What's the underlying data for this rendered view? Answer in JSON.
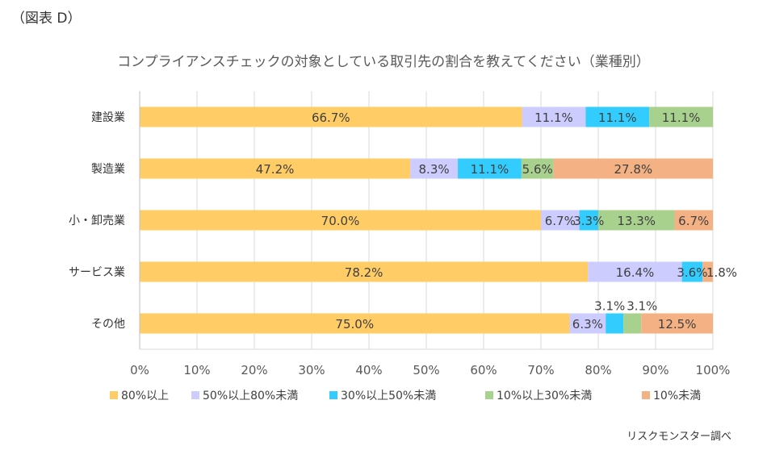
{
  "figure_label": "（図表 D）",
  "source_note": "リスクモンスター調べ",
  "chart_data": {
    "type": "bar",
    "orientation": "horizontal",
    "stacked": true,
    "title": "コンプライアンスチェックの対象としている取引先の割合を教えてください（業種別）",
    "xlabel": "",
    "ylabel": "",
    "xlim": [
      0,
      100
    ],
    "x_ticks": [
      "0%",
      "10%",
      "20%",
      "30%",
      "40%",
      "50%",
      "60%",
      "70%",
      "80%",
      "90%",
      "100%"
    ],
    "grid": "vertical",
    "legend_position": "bottom",
    "categories": [
      "建設業",
      "製造業",
      "小・卸売業",
      "サービス業",
      "その他"
    ],
    "series": [
      {
        "name": "80%以上",
        "color": "#FFCC66",
        "values": [
          66.7,
          47.2,
          70.0,
          78.2,
          75.0
        ],
        "labels": [
          "66.7%",
          "47.2%",
          "70.0%",
          "78.2%",
          "75.0%"
        ]
      },
      {
        "name": "50%以上80%未満",
        "color": "#CCCCFF",
        "values": [
          11.1,
          8.3,
          6.7,
          16.4,
          6.3
        ],
        "labels": [
          "11.1%",
          "8.3%",
          "6.7%",
          "16.4%",
          "6.3%"
        ]
      },
      {
        "name": "30%以上50%未満",
        "color": "#33CCFF",
        "values": [
          11.1,
          11.1,
          3.3,
          3.6,
          3.1
        ],
        "labels": [
          "11.1%",
          "11.1%",
          "3.3%",
          "3.6%",
          "3.1%"
        ]
      },
      {
        "name": "10%以上30%未満",
        "color": "#A9D18E",
        "values": [
          11.1,
          5.6,
          13.3,
          0,
          3.1
        ],
        "labels": [
          "11.1%",
          "5.6%",
          "13.3%",
          "",
          "3.1%"
        ]
      },
      {
        "name": "10%未満",
        "color": "#F4B183",
        "values": [
          0,
          27.8,
          6.7,
          1.8,
          12.5
        ],
        "labels": [
          "",
          "27.8%",
          "6.7%",
          "1.8%",
          "12.5%"
        ]
      }
    ]
  }
}
